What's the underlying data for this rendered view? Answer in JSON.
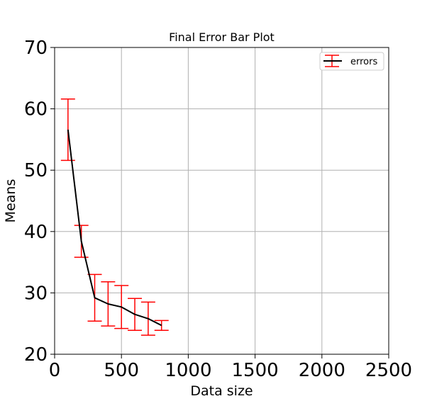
{
  "chart_data": {
    "type": "line",
    "title": "Final Error Bar Plot",
    "xlabel": "Data size",
    "ylabel": "Means",
    "xlim": [
      0,
      2500
    ],
    "ylim": [
      20,
      70
    ],
    "xticks": [
      0,
      500,
      1000,
      1500,
      2000,
      2500
    ],
    "yticks": [
      20,
      30,
      40,
      50,
      60,
      70
    ],
    "xtick_labels": [
      "0",
      "500",
      "1000",
      "1500",
      "2000",
      "2500"
    ],
    "ytick_labels": [
      "20",
      "30",
      "40",
      "50",
      "60",
      "70"
    ],
    "grid": true,
    "legend_position": "top-right",
    "series": [
      {
        "name": "errors",
        "line_color": "#000000",
        "error_color": "#ff0000",
        "x": [
          100,
          200,
          300,
          400,
          500,
          600,
          700,
          800
        ],
        "y": [
          56.6,
          38.4,
          29.2,
          28.2,
          27.7,
          26.5,
          25.8,
          24.7
        ],
        "yerr": [
          5.0,
          2.6,
          3.8,
          3.6,
          3.5,
          2.6,
          2.7,
          0.8
        ]
      }
    ]
  }
}
